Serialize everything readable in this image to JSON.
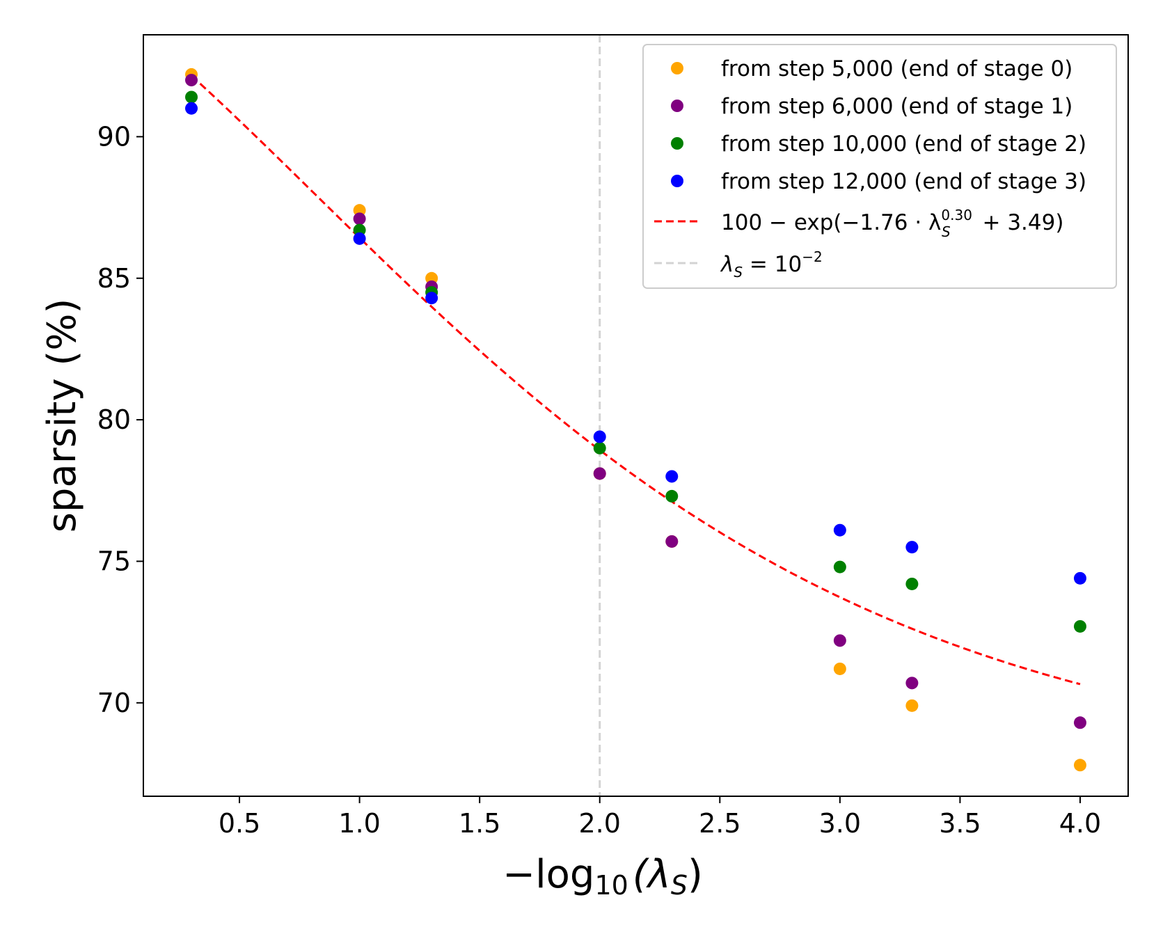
{
  "chart_data": {
    "type": "scatter",
    "xlabel": "−log10(λS)",
    "xlabel_parts": {
      "prefix": "−log",
      "sub": "10",
      "mid": "(λ",
      "sub2": "S",
      "suffix": ")"
    },
    "ylabel": "sparsity (%)",
    "xlim": [
      0.1,
      4.2
    ],
    "ylim": [
      66.7,
      93.6
    ],
    "xticks": [
      0.5,
      1.0,
      1.5,
      2.0,
      2.5,
      3.0,
      3.5,
      4.0
    ],
    "xtick_labels": [
      "0.5",
      "1.0",
      "1.5",
      "2.0",
      "2.5",
      "3.0",
      "3.5",
      "4.0"
    ],
    "yticks": [
      70,
      75,
      80,
      85,
      90
    ],
    "ytick_labels": [
      "70",
      "75",
      "80",
      "85",
      "90"
    ],
    "x": [
      0.3,
      1.0,
      1.3,
      2.0,
      2.3,
      3.0,
      3.3,
      4.0
    ],
    "series": [
      {
        "name": "from step 5,000 (end of stage 0)",
        "color": "#ffa500",
        "values": [
          92.2,
          87.4,
          85.0,
          78.1,
          75.7,
          71.2,
          69.9,
          67.8
        ]
      },
      {
        "name": "from step 6,000 (end of stage 1)",
        "color": "#800080",
        "values": [
          92.0,
          87.1,
          84.7,
          78.1,
          75.7,
          72.2,
          70.7,
          69.3
        ]
      },
      {
        "name": "from step 10,000 (end of stage 2)",
        "color": "#008000",
        "values": [
          91.4,
          86.7,
          84.5,
          79.0,
          77.3,
          74.8,
          74.2,
          72.7
        ]
      },
      {
        "name": "from step 12,000 (end of stage 3)",
        "color": "#0000ff",
        "values": [
          91.0,
          86.4,
          84.3,
          79.4,
          78.0,
          76.1,
          75.5,
          74.4
        ]
      }
    ],
    "fit": {
      "label_parts": {
        "a": "100 − exp(−1.76 · λ",
        "sup": "0.30",
        "sub": "S",
        "b": " + 3.49)"
      },
      "color": "#ff0000",
      "a": 1.76,
      "b": 0.3,
      "c": 3.49,
      "x_range": [
        0.3,
        4.0
      ]
    },
    "vline": {
      "label_parts": {
        "a": "λ",
        "sub": "S",
        "b": " = 10",
        "sup": "−2"
      },
      "x": 2.0,
      "color": "#d3d3d3"
    },
    "legend_position": "upper-right"
  }
}
